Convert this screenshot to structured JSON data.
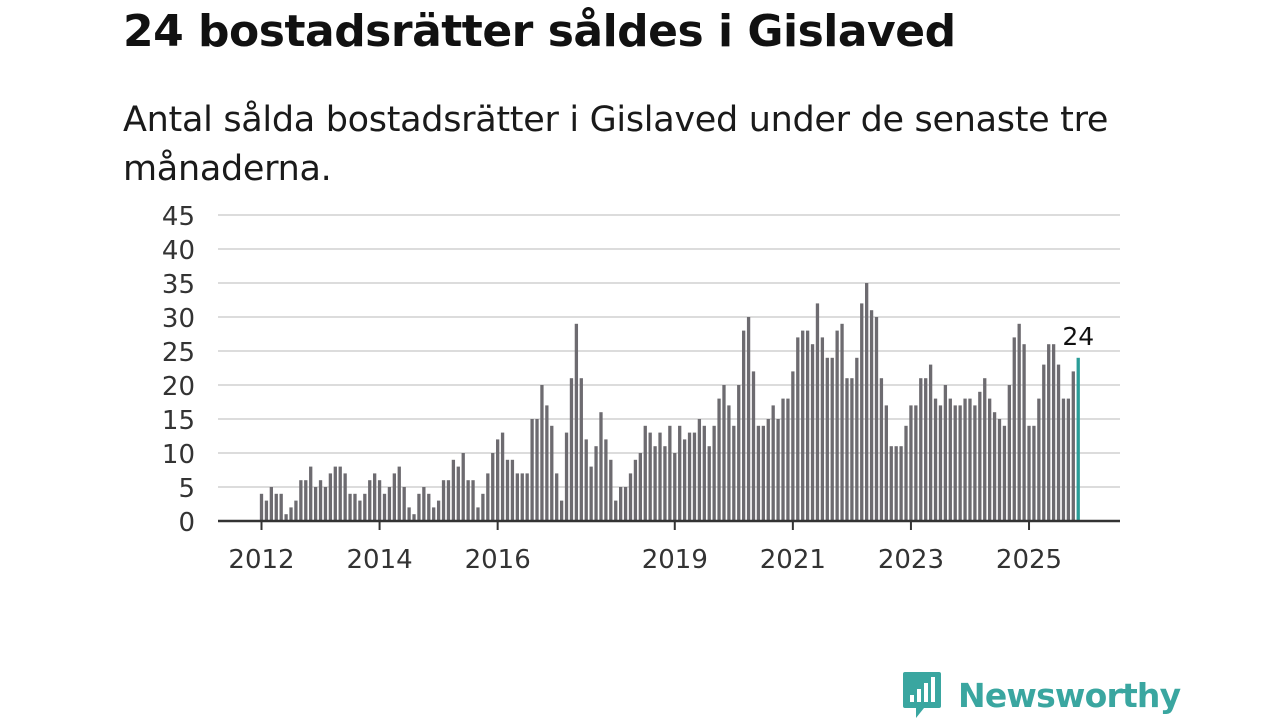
{
  "header": {
    "title": "24 bostadsrätter såldes i Gislaved",
    "subtitle": "Antal sålda bostadsrätter i Gislaved under de senaste tre månaderna."
  },
  "brand": {
    "name": "Newsworthy",
    "color": "#3aa6a0",
    "icon": "newsworthy-logo-icon"
  },
  "chart_data": {
    "type": "bar",
    "title": "24 bostadsrätter såldes i Gislaved",
    "subtitle": "Antal sålda bostadsrätter i Gislaved under de senaste tre månaderna.",
    "xlabel": "",
    "ylabel": "",
    "ylim": [
      0,
      45
    ],
    "yticks": [
      0,
      5,
      10,
      15,
      20,
      25,
      30,
      35,
      40,
      45
    ],
    "grid": true,
    "start": "2012-01",
    "xticks": [
      {
        "label": "2012",
        "index": 0
      },
      {
        "label": "2014",
        "index": 24
      },
      {
        "label": "2016",
        "index": 48
      },
      {
        "label": "2019",
        "index": 84
      },
      {
        "label": "2021",
        "index": 108
      },
      {
        "label": "2023",
        "index": 132
      },
      {
        "label": "2025",
        "index": 156
      }
    ],
    "bar_color": "#6d6b70",
    "highlight_color": "#2a9d98",
    "highlight_label": "24",
    "values": [
      4,
      3,
      5,
      4,
      4,
      1,
      2,
      3,
      6,
      6,
      8,
      5,
      6,
      5,
      7,
      8,
      8,
      7,
      4,
      4,
      3,
      4,
      6,
      7,
      6,
      4,
      5,
      7,
      8,
      5,
      2,
      1,
      4,
      5,
      4,
      2,
      3,
      6,
      6,
      9,
      8,
      10,
      6,
      6,
      2,
      4,
      7,
      10,
      12,
      13,
      9,
      9,
      7,
      7,
      7,
      15,
      15,
      20,
      17,
      14,
      7,
      3,
      13,
      21,
      29,
      21,
      12,
      8,
      11,
      16,
      12,
      9,
      3,
      5,
      5,
      7,
      9,
      10,
      14,
      13,
      11,
      13,
      11,
      14,
      10,
      14,
      12,
      13,
      13,
      15,
      14,
      11,
      14,
      18,
      20,
      17,
      14,
      20,
      28,
      30,
      22,
      14,
      14,
      15,
      17,
      15,
      18,
      18,
      22,
      27,
      28,
      28,
      26,
      32,
      27,
      24,
      24,
      28,
      29,
      21,
      21,
      24,
      32,
      35,
      31,
      30,
      21,
      17,
      11,
      11,
      11,
      14,
      17,
      17,
      21,
      21,
      23,
      18,
      17,
      20,
      18,
      17,
      17,
      18,
      18,
      17,
      19,
      21,
      18,
      16,
      15,
      14,
      20,
      27,
      29,
      26,
      14,
      14,
      18,
      23,
      26,
      26,
      23,
      18,
      18,
      22,
      24
    ]
  }
}
